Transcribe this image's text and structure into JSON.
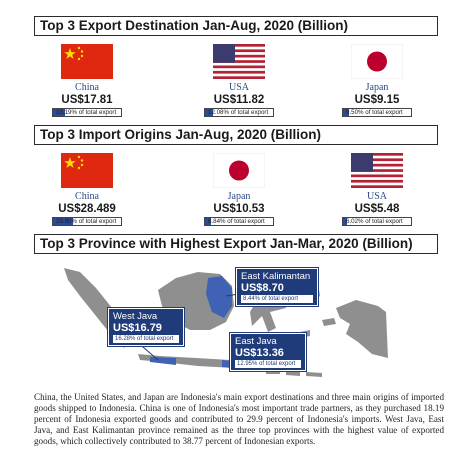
{
  "colors": {
    "accent": "#1f3b7a",
    "map_land": "#8f8f8f",
    "map_highlight": "#3f62b5"
  },
  "export_section": {
    "title": "Top 3 Export Destination Jan-Aug, 2020 (Billion)",
    "items": [
      {
        "country": "China",
        "amount": "US$17.81",
        "share_text": "18.19% of total export",
        "share_value": 18.19,
        "flag": "china-flag"
      },
      {
        "country": "USA",
        "amount": "US$11.82",
        "share_text": "12.08% of total export",
        "share_value": 12.08,
        "flag": "usa-flag"
      },
      {
        "country": "Japan",
        "amount": "US$9.15",
        "share_text": "9.50% of total export",
        "share_value": 9.5,
        "flag": "japan-flag"
      }
    ]
  },
  "import_section": {
    "title": "Top 3 Import Origins Jan-Aug, 2020 (Billion)",
    "items": [
      {
        "country": "China",
        "amount": "US$28.489",
        "share_text": "29.90% of total export",
        "share_value": 29.9,
        "flag": "china-flag"
      },
      {
        "country": "Japan",
        "amount": "US$10.53",
        "share_text": "8.84% of total export",
        "share_value": 8.84,
        "flag": "japan-flag"
      },
      {
        "country": "USA",
        "amount": "US$5.48",
        "share_text": "6.02% of total export",
        "share_value": 6.02,
        "flag": "usa-flag"
      }
    ]
  },
  "province_section": {
    "title": "Top 3 Province with Highest Export Jan-Mar, 2020 (Billion)",
    "items": [
      {
        "name": "East Kalimantan",
        "amount": "US$8.70",
        "share_text": "8.44% of total export"
      },
      {
        "name": "West Java",
        "amount": "US$16.79",
        "share_text": "16.28% of total export"
      },
      {
        "name": "East Java",
        "amount": "US$13.36",
        "share_text": "12.95% of total export"
      }
    ]
  },
  "caption": "China, the United States, and Japan are Indonesia's main export destinations and three main origins of imported goods shipped to Indonesia. China is one of Indonesia's most important trade partners, as they purchased 18.19 percent of Indonesia exported goods and contributed to 29.9 percent of Indonesia's imports. West Java, East Java, and East Kalimantan province remained as the three top provinces with the highest value of exported goods, which collectively contributed to 38.77 percent of Indonesian exports."
}
